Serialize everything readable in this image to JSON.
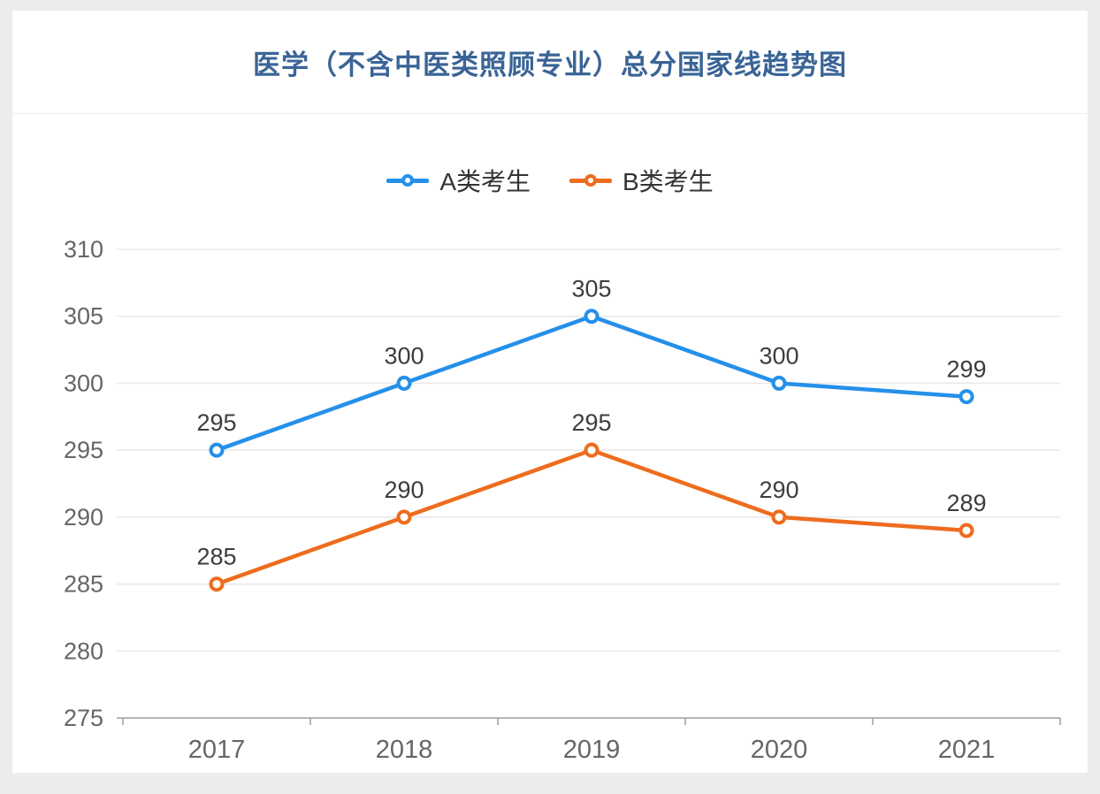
{
  "page": {
    "background": "#ececec",
    "card_background": "#ffffff"
  },
  "header": {
    "title": "医学（不含中医类照顾专业）总分国家线趋势图",
    "title_color": "#3a6496"
  },
  "legend": [
    {
      "label": "A类考生",
      "color": "#2590e9"
    },
    {
      "label": "B类考生",
      "color": "#ee6c1e"
    }
  ],
  "axis": {
    "label_color": "#666666",
    "grid_color": "#e8e8e8",
    "axis_line_color": "#9aa0a6",
    "data_label_color": "#3d3d3d"
  },
  "chart_data": {
    "type": "line",
    "title": "医学（不含中医类照顾专业）总分国家线趋势图",
    "categories": [
      "2017",
      "2018",
      "2019",
      "2020",
      "2021"
    ],
    "series": [
      {
        "name": "A类考生",
        "color": "#2590e9",
        "values": [
          295,
          300,
          305,
          300,
          299
        ]
      },
      {
        "name": "B类考生",
        "color": "#ee6c1e",
        "values": [
          285,
          290,
          295,
          290,
          289
        ]
      }
    ],
    "xlabel": "",
    "ylabel": "",
    "ylim": [
      275,
      310
    ],
    "ytick_step": 5,
    "grid": true,
    "legend_position": "top-center",
    "marker": "hollow-circle",
    "data_labels": true
  }
}
